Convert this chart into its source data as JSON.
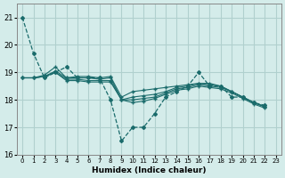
{
  "xlabel": "Humidex (Indice chaleur)",
  "ylabel": "",
  "background_color": "#d4ecea",
  "plot_bg_color": "#d4ecea",
  "grid_color": "#b0d0ce",
  "line_color": "#1a6b6b",
  "xlim": [
    -0.5,
    23.5
  ],
  "ylim": [
    16,
    21.5
  ],
  "yticks": [
    16,
    17,
    18,
    19,
    20,
    21
  ],
  "xtick_labels": [
    "0",
    "1",
    "2",
    "3",
    "4",
    "5",
    "6",
    "7",
    "8",
    "9",
    "10",
    "11",
    "12",
    "13",
    "14",
    "15",
    "16",
    "17",
    "18",
    "19",
    "20",
    "21",
    "22",
    "23"
  ],
  "series": [
    [
      21.0,
      19.7,
      18.8,
      19.0,
      19.2,
      18.8,
      18.8,
      18.8,
      18.0,
      16.5,
      17.0,
      17.0,
      17.5,
      18.1,
      18.3,
      18.5,
      19.0,
      18.5,
      18.5,
      18.1,
      18.1,
      17.9,
      17.8
    ],
    [
      18.8,
      18.8,
      18.9,
      19.2,
      18.8,
      18.85,
      18.85,
      18.8,
      18.85,
      18.1,
      18.3,
      18.35,
      18.4,
      18.45,
      18.5,
      18.55,
      18.6,
      18.6,
      18.5,
      18.3,
      18.1,
      17.9,
      17.75
    ],
    [
      18.8,
      18.8,
      18.85,
      19.05,
      18.8,
      18.8,
      18.8,
      18.75,
      18.8,
      18.0,
      18.1,
      18.15,
      18.2,
      18.3,
      18.45,
      18.5,
      18.6,
      18.55,
      18.5,
      18.3,
      18.1,
      17.9,
      17.75
    ],
    [
      18.8,
      18.8,
      18.85,
      19.0,
      18.75,
      18.75,
      18.7,
      18.7,
      18.7,
      18.0,
      18.0,
      18.05,
      18.1,
      18.25,
      18.4,
      18.45,
      18.55,
      18.5,
      18.45,
      18.3,
      18.1,
      17.9,
      17.75
    ],
    [
      18.8,
      18.8,
      18.85,
      19.0,
      18.7,
      18.7,
      18.65,
      18.65,
      18.65,
      18.0,
      17.9,
      17.95,
      18.05,
      18.2,
      18.35,
      18.4,
      18.5,
      18.45,
      18.4,
      18.25,
      18.05,
      17.85,
      17.7
    ]
  ]
}
